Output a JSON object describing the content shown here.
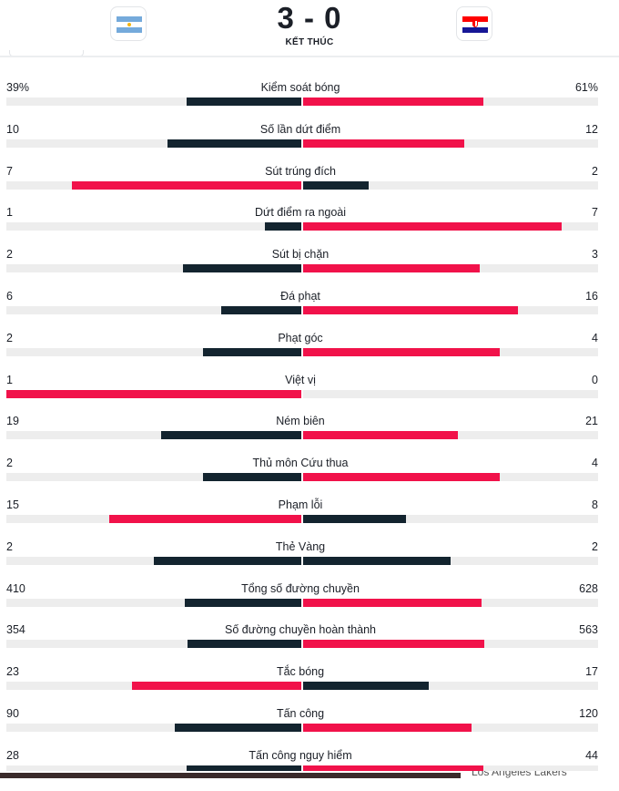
{
  "match": {
    "score": "3 - 0",
    "status": "KẾT THÚC",
    "home_flag_icon": "argentina-flag-icon",
    "away_flag_icon": "croatia-flag-icon"
  },
  "colors": {
    "home": "#13242f",
    "away": "#f1124a",
    "track": "#ededed"
  },
  "stats": [
    {
      "label": "Kiểm soát bóng",
      "home": "39%",
      "away": "61%",
      "home_value": 39,
      "away_value": 61,
      "leader": "away"
    },
    {
      "label": "Số lần dứt điểm",
      "home": "10",
      "away": "12",
      "home_value": 10,
      "away_value": 12,
      "leader": "away"
    },
    {
      "label": "Sút trúng đích",
      "home": "7",
      "away": "2",
      "home_value": 7,
      "away_value": 2,
      "leader": "home"
    },
    {
      "label": "Dứt điểm ra ngoài",
      "home": "1",
      "away": "7",
      "home_value": 1,
      "away_value": 7,
      "leader": "away"
    },
    {
      "label": "Sút bị chặn",
      "home": "2",
      "away": "3",
      "home_value": 2,
      "away_value": 3,
      "leader": "away"
    },
    {
      "label": "Đá phạt",
      "home": "6",
      "away": "16",
      "home_value": 6,
      "away_value": 16,
      "leader": "away"
    },
    {
      "label": "Phạt góc",
      "home": "2",
      "away": "4",
      "home_value": 2,
      "away_value": 4,
      "leader": "away"
    },
    {
      "label": "Việt vị",
      "home": "1",
      "away": "0",
      "home_value": 1,
      "away_value": 0,
      "leader": "home"
    },
    {
      "label": "Ném biên",
      "home": "19",
      "away": "21",
      "home_value": 19,
      "away_value": 21,
      "leader": "away"
    },
    {
      "label": "Thủ môn Cứu thua",
      "home": "2",
      "away": "4",
      "home_value": 2,
      "away_value": 4,
      "leader": "away"
    },
    {
      "label": "Phạm lỗi",
      "home": "15",
      "away": "8",
      "home_value": 15,
      "away_value": 8,
      "leader": "home"
    },
    {
      "label": "Thẻ Vàng",
      "home": "2",
      "away": "2",
      "home_value": 2,
      "away_value": 2,
      "leader": "none"
    },
    {
      "label": "Tổng số đường chuyền",
      "home": "410",
      "away": "628",
      "home_value": 410,
      "away_value": 628,
      "leader": "away"
    },
    {
      "label": "Số đường chuyền hoàn thành",
      "home": "354",
      "away": "563",
      "home_value": 354,
      "away_value": 563,
      "leader": "away"
    },
    {
      "label": "Tắc bóng",
      "home": "23",
      "away": "17",
      "home_value": 23,
      "away_value": 17,
      "leader": "home"
    },
    {
      "label": "Tấn công",
      "home": "90",
      "away": "120",
      "home_value": 90,
      "away_value": 120,
      "leader": "away"
    },
    {
      "label": "Tấn công nguy hiểm",
      "home": "28",
      "away": "44",
      "home_value": 28,
      "away_value": 44,
      "leader": "away"
    }
  ],
  "footer": {
    "clipped_text": "Los Angeles Lakers"
  }
}
